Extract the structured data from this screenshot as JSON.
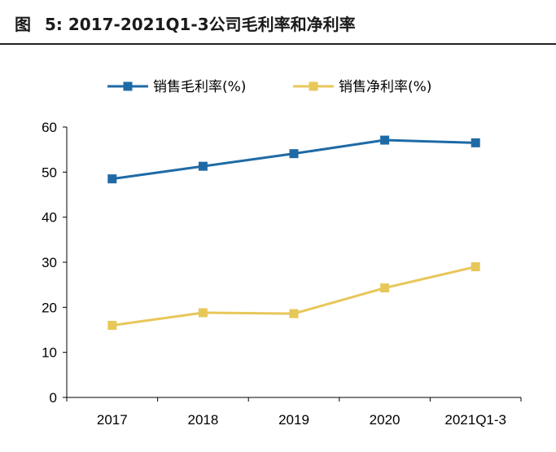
{
  "figure": {
    "label": "图",
    "number": "5:",
    "title": "2017-2021Q1-3公司毛利率和净利率"
  },
  "chart_data": {
    "type": "line",
    "categories": [
      "2017",
      "2018",
      "2019",
      "2020",
      "2021Q1-3"
    ],
    "series": [
      {
        "name": "销售毛利率(%)",
        "color": "#1f6aa5",
        "values": [
          48.5,
          51.3,
          54.1,
          57.1,
          56.5
        ]
      },
      {
        "name": "销售净利率(%)",
        "color": "#e8c75a",
        "values": [
          16.0,
          18.8,
          18.6,
          24.3,
          29.0
        ]
      }
    ],
    "ylim": [
      0,
      60
    ],
    "yticks": [
      "0",
      "10",
      "20",
      "30",
      "40",
      "50",
      "60"
    ],
    "grid": false,
    "legend": "top"
  }
}
